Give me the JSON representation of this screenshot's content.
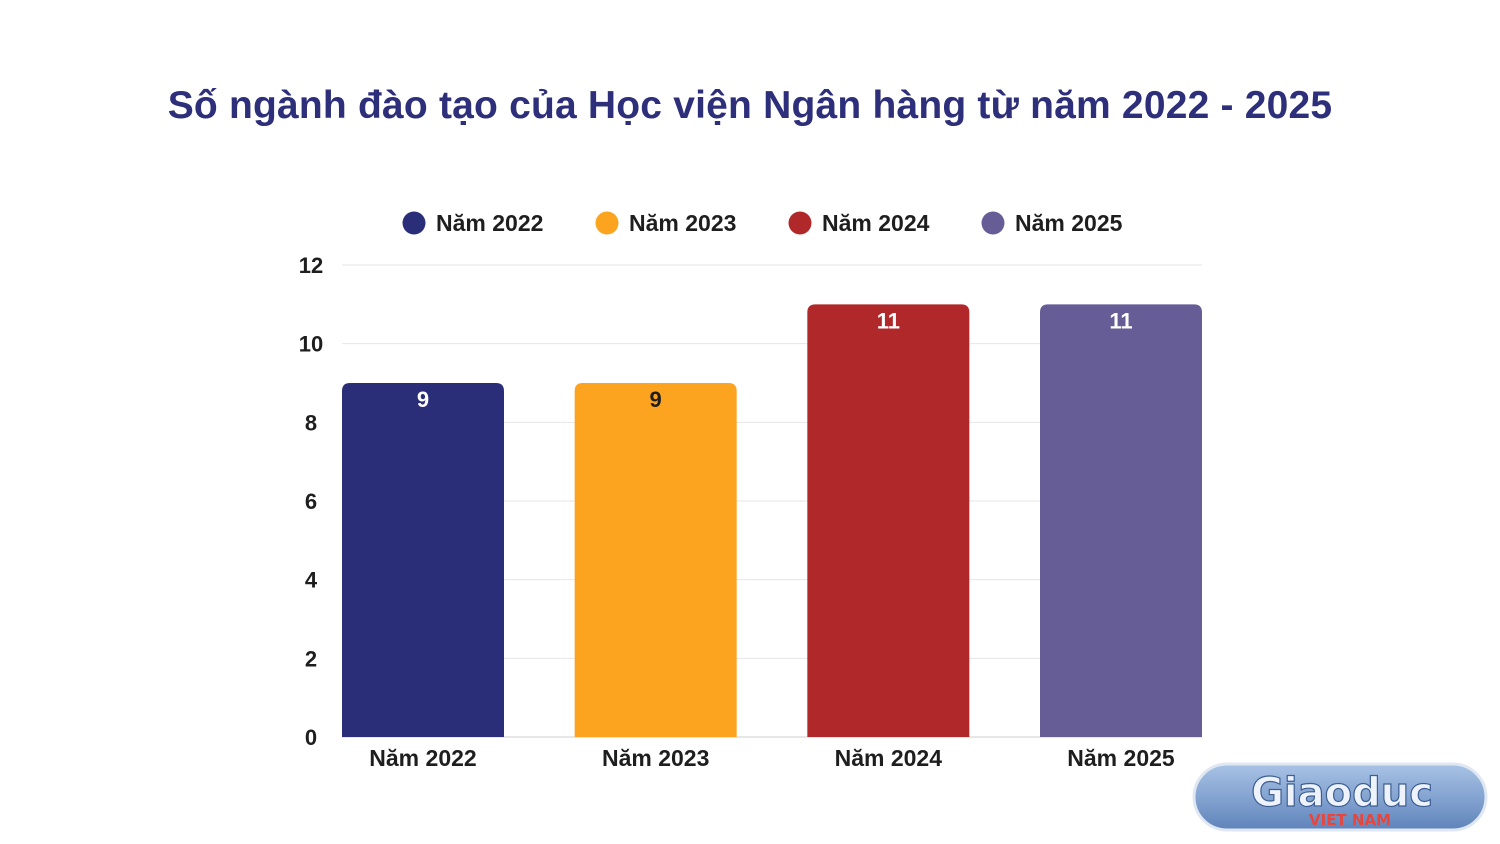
{
  "chart_data": {
    "type": "bar",
    "title": "Số ngành đào tạo của Học viện Ngân hàng từ năm 2022 - 2025",
    "categories": [
      "Năm 2022",
      "Năm 2023",
      "Năm 2024",
      "Năm 2025"
    ],
    "values": [
      9,
      9,
      11,
      11
    ],
    "colors": [
      "#2a2e78",
      "#fca31f",
      "#b1282b",
      "#665d96"
    ],
    "legend": {
      "placement": "top",
      "entries": [
        "Năm 2022",
        "Năm 2023",
        "Năm 2024",
        "Năm 2025"
      ]
    },
    "ylim": [
      0,
      12
    ],
    "yticks": [
      0,
      2,
      4,
      6,
      8,
      10,
      12
    ],
    "grid": true,
    "data_labels": true,
    "xlabel": "",
    "ylabel": ""
  },
  "logo": {
    "text_main": "Giaoduc",
    "text_sub": "VIET NAM",
    "colors": [
      "#7a9ccb",
      "#e8453c"
    ]
  }
}
